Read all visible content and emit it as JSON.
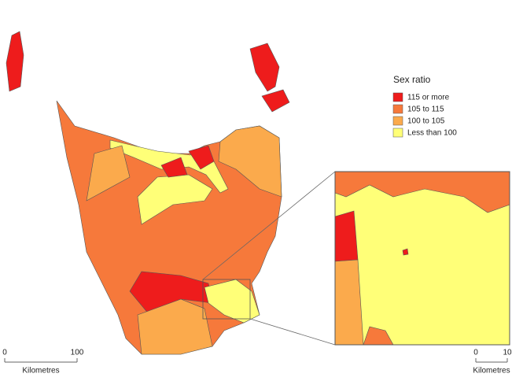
{
  "legend": {
    "title": "Sex ratio",
    "items": [
      {
        "label": "115 or more",
        "color": "#ee1c1c"
      },
      {
        "label": "105 to 115",
        "color": "#f6793b"
      },
      {
        "label": "100 to 105",
        "color": "#fbaa4c"
      },
      {
        "label": "Less than 100",
        "color": "#ffff78"
      }
    ]
  },
  "scale_main": {
    "ticks": [
      0,
      100
    ],
    "unit": "Kilometres"
  },
  "scale_inset": {
    "ticks": [
      0,
      10
    ],
    "unit": "Kilometres"
  }
}
